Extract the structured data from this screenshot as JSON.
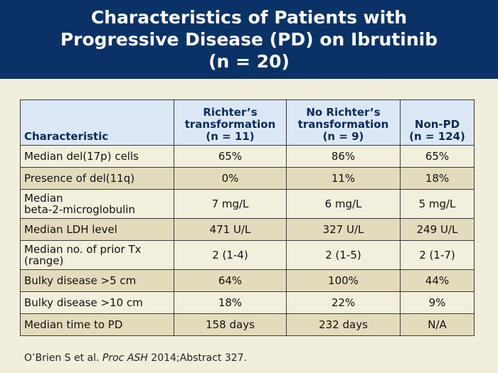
{
  "title": {
    "line1": "Characteristics of Patients with",
    "line2": "Progressive Disease (PD) on Ibrutinib",
    "line3": "(n = 20)"
  },
  "table": {
    "headers": {
      "characteristic": "Characteristic",
      "col1": [
        "Richter’s",
        "transformation",
        "(n = 11)"
      ],
      "col2": [
        "No Richter’s",
        "transformation",
        "(n = 9)"
      ],
      "col3": [
        "Non-PD",
        "(n = 124)"
      ]
    },
    "rows": [
      {
        "label": [
          "Median del(17p) cells"
        ],
        "values": [
          "65%",
          "86%",
          "65%"
        ]
      },
      {
        "label": [
          "Presence of del(11q)"
        ],
        "values": [
          "0%",
          "11%",
          "18%"
        ]
      },
      {
        "label": [
          "Median",
          "beta-2-microglobulin"
        ],
        "values": [
          "7 mg/L",
          "6 mg/L",
          "5 mg/L"
        ]
      },
      {
        "label": [
          "Median LDH level"
        ],
        "values": [
          "471 U/L",
          "327 U/L",
          "249 U/L"
        ]
      },
      {
        "label": [
          "Median no. of prior Tx",
          "(range)"
        ],
        "values": [
          "2 (1-4)",
          "2 (1-5)",
          "2 (1-7)"
        ]
      },
      {
        "label": [
          "Bulky disease >5 cm"
        ],
        "values": [
          "64%",
          "100%",
          "44%"
        ]
      },
      {
        "label": [
          "Bulky disease >10 cm"
        ],
        "values": [
          "18%",
          "22%",
          "9%"
        ]
      },
      {
        "label": [
          "Median time to PD"
        ],
        "values": [
          "158 days",
          "232 days",
          "N/A"
        ]
      }
    ]
  },
  "citation": {
    "authors": "O’Brien S et al.",
    "journal": "Proc ASH",
    "rest": "2014;Abstract 327."
  }
}
